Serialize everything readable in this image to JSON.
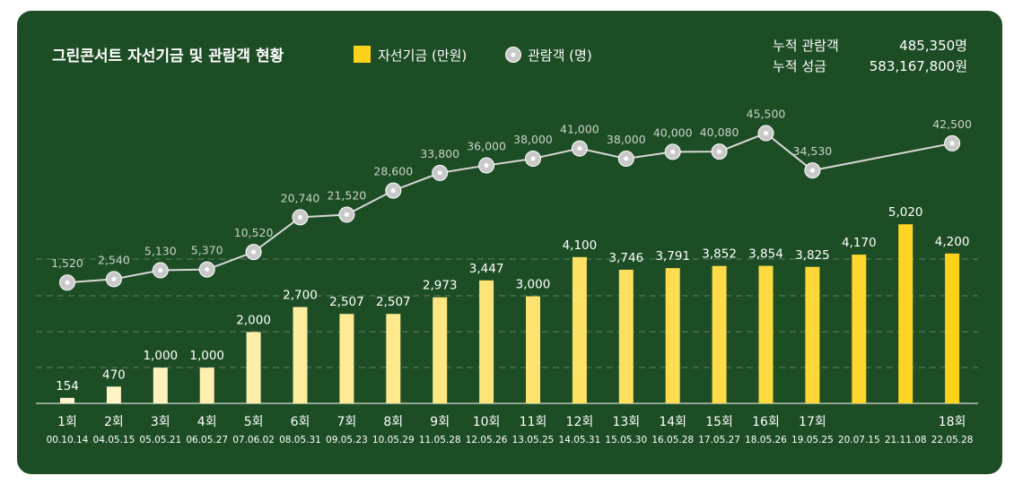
{
  "chart_data": {
    "type": "bar",
    "title": "그린콘서트 자선기금 및 관람객 현황",
    "legend": {
      "position": "top",
      "items": [
        "자선기금 (만원)",
        "관람객 (명)"
      ]
    },
    "summary": [
      {
        "label": "누적 관람객",
        "value": "485,350명"
      },
      {
        "label": "누적 성금",
        "value": "583,167,800원"
      }
    ],
    "categories": [
      "1회",
      "2회",
      "3회",
      "4회",
      "5회",
      "6회",
      "7회",
      "8회",
      "9회",
      "10회",
      "11회",
      "12회",
      "13회",
      "14회",
      "15회",
      "16회",
      "17회",
      "",
      "",
      "18회"
    ],
    "dates": [
      "00.10.14",
      "04.05.15",
      "05.05.21",
      "06.05.27",
      "07.06.02",
      "08.05.31",
      "09.05.23",
      "10.05.29",
      "11.05.28",
      "12.05.26",
      "13.05.25",
      "14.05.31",
      "15.05.30",
      "16.05.28",
      "17.05.27",
      "18.05.26",
      "19.05.25",
      "20.07.15",
      "21.11.08",
      "22.05.28"
    ],
    "series": [
      {
        "name": "자선기금 (만원)",
        "type": "bar",
        "values": [
          154,
          470,
          1000,
          1000,
          2000,
          2700,
          2507,
          2507,
          2973,
          3447,
          3000,
          4100,
          3746,
          3791,
          3852,
          3854,
          3825,
          4170,
          5020,
          4200
        ],
        "labels": [
          "154",
          "470",
          "1,000",
          "1,000",
          "2,000",
          "2,700",
          "2,507",
          "2,507",
          "2,973",
          "3,447",
          "3,000",
          "4,100",
          "3,746",
          "3,791",
          "3,852",
          "3,854",
          "3,825",
          "4,170",
          "5,020",
          "4,200"
        ]
      },
      {
        "name": "관람객 (명)",
        "type": "line",
        "values": [
          1520,
          2540,
          5130,
          5370,
          10520,
          20740,
          21520,
          28600,
          33800,
          36000,
          38000,
          41000,
          38000,
          40000,
          40080,
          45500,
          34530,
          null,
          null,
          42500
        ],
        "labels": [
          "1,520",
          "2,540",
          "5,130",
          "5,370",
          "10,520",
          "20,740",
          "21,520",
          "28,600",
          "33,800",
          "36,000",
          "38,000",
          "41,000",
          "38,000",
          "40,000",
          "40,080",
          "45,500",
          "34,530",
          "",
          "",
          "42,500"
        ]
      }
    ],
    "colors": {
      "background": "#1d4d25",
      "bar_light": "#fff6cf",
      "bar_dark": "#ffd21a",
      "legend_bar": "#ffd21a",
      "line": "#d7d7d7",
      "marker_fill": "#c9c9c9",
      "text_white": "#ffffff",
      "text_muted": "#c9d2c9",
      "gridline": "#5f7f63"
    }
  }
}
